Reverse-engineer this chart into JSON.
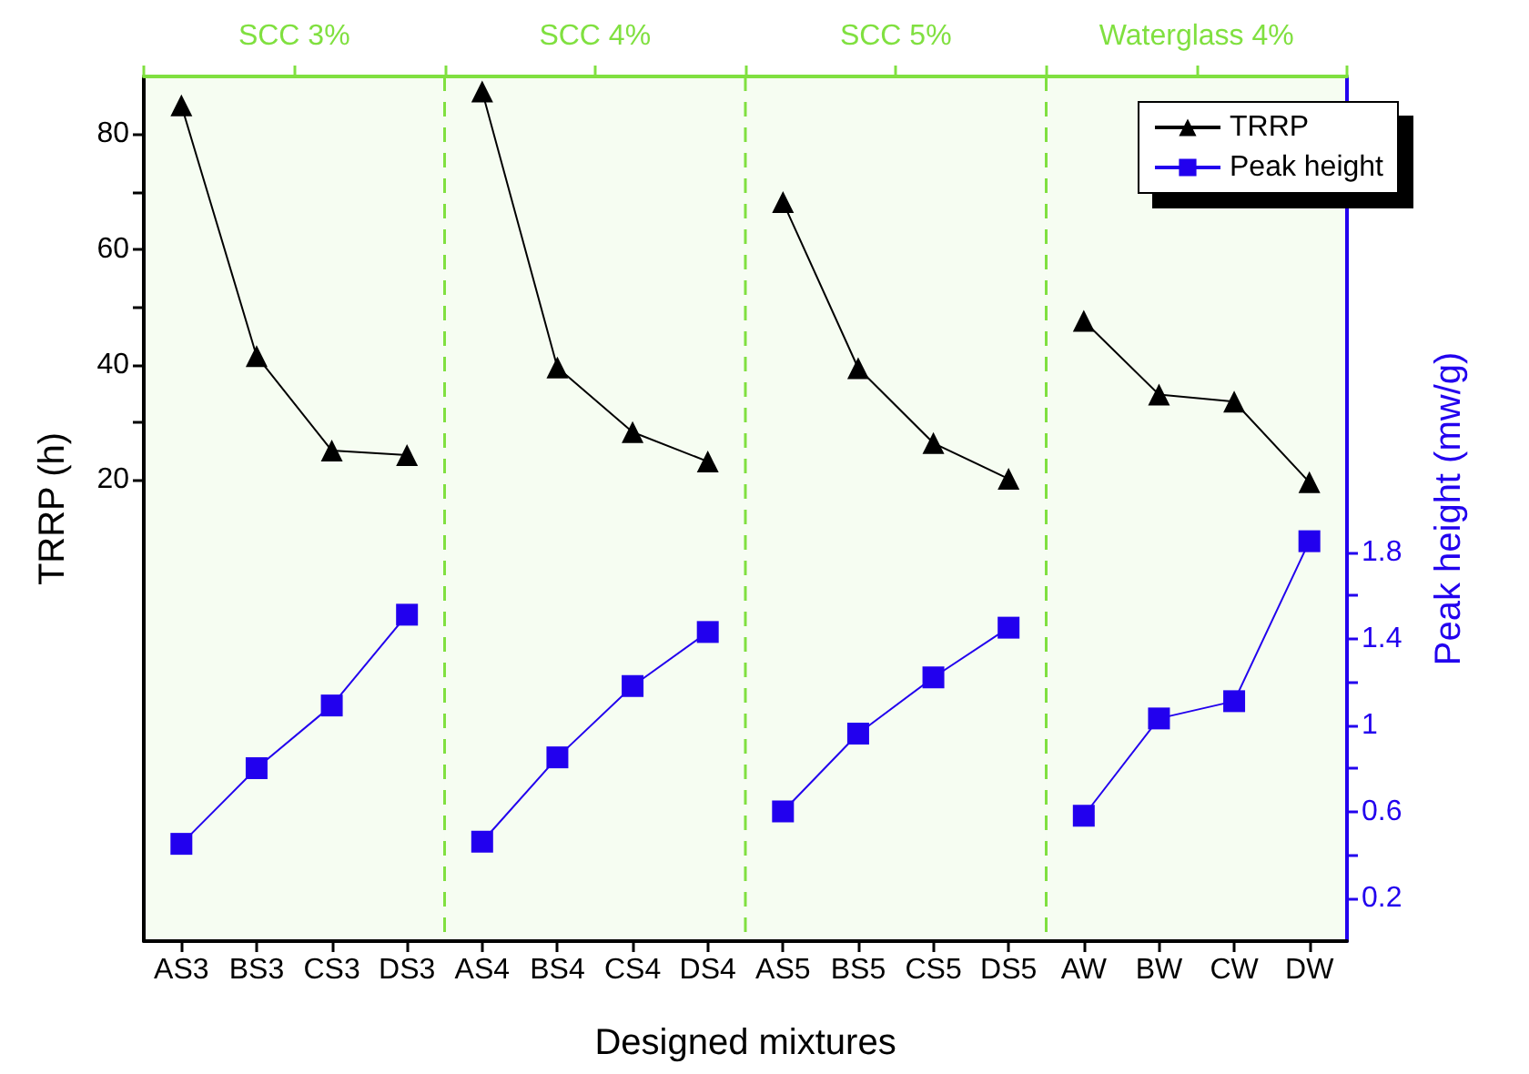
{
  "chart_data": {
    "type": "line",
    "xlabel": "Designed mixtures",
    "ylabel": "TRRP (h)",
    "y2label": "Peak height (mw/g)",
    "categories": [
      "AS3",
      "BS3",
      "CS3",
      "DS3",
      "AS4",
      "BS4",
      "CS4",
      "DS4",
      "AS5",
      "BS5",
      "CS5",
      "DS5",
      "AW",
      "BW",
      "CW",
      "DW"
    ],
    "series": [
      {
        "name": "TRRP",
        "color": "#000000",
        "marker": "triangle",
        "values": [
          85,
          41.5,
          25.1,
          24.3,
          87.4,
          39.5,
          28.3,
          23.2,
          68.2,
          39.4,
          26.4,
          20.2,
          47.6,
          34.8,
          33.6,
          19.6
        ]
      },
      {
        "name": "Peak height",
        "color": "#2200ee",
        "marker": "square",
        "axis": "y2",
        "values": [
          0.45,
          0.8,
          1.09,
          1.51,
          0.46,
          0.85,
          1.18,
          1.43,
          0.6,
          0.96,
          1.22,
          1.45,
          0.58,
          1.03,
          1.11,
          1.85
        ]
      }
    ],
    "ylim": [
      -60,
      90
    ],
    "yticks": [
      20,
      {
        "value": 30,
        "label": null
      },
      40,
      {
        "value": 50,
        "label": null
      },
      60,
      {
        "value": 70,
        "label": null
      },
      80
    ],
    "y2lim": [
      0,
      4
    ],
    "y2ticks": [
      0.2,
      {
        "value": 0.4,
        "label": null
      },
      0.6,
      {
        "value": 0.8,
        "label": null
      },
      1,
      {
        "value": 1.2,
        "label": null
      },
      1.4,
      {
        "value": 1.6,
        "label": null
      },
      1.8
    ],
    "bands": [
      {
        "axis": "x",
        "from": "AS3",
        "to": "DS3",
        "label": "SCC 3%",
        "color": "#80e040"
      },
      {
        "axis": "x",
        "from": "AS4",
        "to": "DS4",
        "label": "SCC 4%",
        "color": "#80e040"
      },
      {
        "axis": "x",
        "from": "AS5",
        "to": "DS5",
        "label": "SCC 5%",
        "color": "#80e040"
      },
      {
        "axis": "x",
        "from": "AW",
        "to": "DW",
        "label": "Waterglass 4%",
        "color": "#80e040"
      }
    ],
    "grid": false,
    "legend": "top right",
    "line_style": "solid"
  }
}
